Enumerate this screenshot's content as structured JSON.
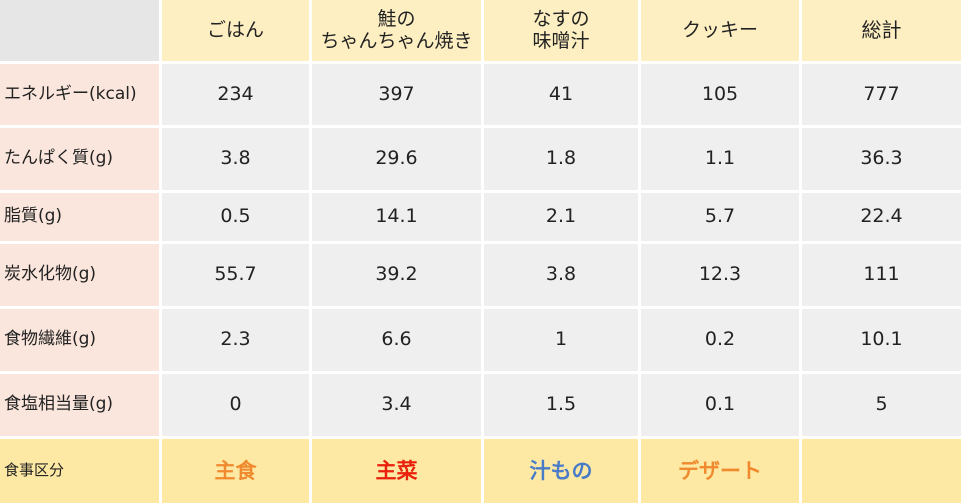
{
  "headers": [
    "ごはん",
    "鮭の\nちゃんちゃん焼き",
    "なすの\n味噌汁",
    "クッキー",
    "総計"
  ],
  "rows": [
    {
      "label": "エネルギー(kcal)",
      "values": [
        "234",
        "397",
        "41",
        "105",
        "777"
      ]
    },
    {
      "label": "たんぱく質(g)",
      "values": [
        "3.8",
        "29.6",
        "1.8",
        "1.1",
        "36.3"
      ]
    },
    {
      "label": "脂質(g)",
      "values": [
        "0.5",
        "14.1",
        "2.1",
        "5.7",
        "22.4"
      ]
    },
    {
      "label": "炭水化物(g)",
      "values": [
        "55.7",
        "39.2",
        "3.8",
        "12.3",
        "111"
      ]
    },
    {
      "label": "食物繊維(g)",
      "values": [
        "2.3",
        "6.6",
        "1",
        "0.2",
        "10.1"
      ]
    },
    {
      "label": "食塩相当量(g)",
      "values": [
        "0",
        "3.4",
        "1.5",
        "0.1",
        "5"
      ]
    }
  ],
  "footer": {
    "label": "食事区分",
    "values": [
      "主食",
      "主菜",
      "汁もの",
      "デザート",
      ""
    ]
  },
  "colors": {
    "header_bg": "#fdefc2",
    "row_label_bg": "#fae6dc",
    "value_bg": "#efefef",
    "footer_bg": "#fde9a4",
    "staple": "#f08a2e",
    "main_dish": "#e8200c",
    "soup": "#4a7bc8",
    "dessert": "#f08a2e"
  }
}
